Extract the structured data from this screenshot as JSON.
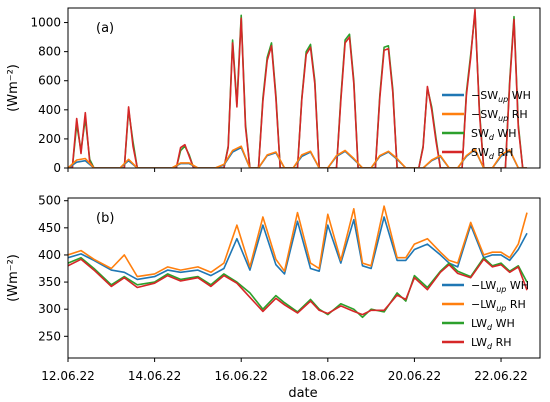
{
  "figure": {
    "xlabel": "date",
    "xticks": [
      "12.06.22",
      "14.06.22",
      "16.06.22",
      "18.06.22",
      "20.06.22",
      "22.06.22"
    ],
    "xticks_days": [
      12,
      14,
      16,
      18,
      20,
      22
    ],
    "xlim_days": [
      12.0,
      22.9
    ]
  },
  "chart_data": [
    {
      "type": "line",
      "panel_label": "(a)",
      "ylabel": "(Wm⁻²)",
      "ylim": [
        0,
        1100
      ],
      "yticks": [
        0,
        200,
        400,
        600,
        800,
        1000
      ],
      "x_unit": "day of June 2022",
      "legend": {
        "placement": "right"
      },
      "colors": {
        "up_wh": "#1f77b4",
        "up_rh": "#ff7f0e",
        "d_wh": "#2ca02c",
        "d_rh": "#d62728"
      },
      "series": [
        {
          "key": "sw_d_wh",
          "legend_prefix": "SW",
          "legend_sub": "d",
          "legend_suffix": " WH",
          "color": "#2ca02c",
          "x": [
            12.0,
            12.1,
            12.2,
            12.3,
            12.4,
            12.5,
            12.6,
            12.7,
            12.8,
            12.9,
            13.0,
            13.1,
            13.2,
            13.3,
            13.4,
            13.5,
            13.6,
            13.7,
            13.8,
            13.9,
            14.0,
            14.1,
            14.2,
            14.3,
            14.4,
            14.5,
            14.6,
            14.7,
            14.8,
            14.9,
            15.0,
            15.1,
            15.2,
            15.3,
            15.4,
            15.5,
            15.6,
            15.7,
            15.8,
            15.9,
            16.0,
            16.1,
            16.2,
            16.3,
            16.4,
            16.5,
            16.6,
            16.7,
            16.8,
            16.9,
            17.0,
            17.1,
            17.2,
            17.3,
            17.4,
            17.5,
            17.6,
            17.7,
            17.8,
            17.9,
            18.0,
            18.1,
            18.2,
            18.3,
            18.4,
            18.5,
            18.6,
            18.7,
            18.8,
            18.9,
            19.0,
            19.1,
            19.2,
            19.3,
            19.4,
            19.5,
            19.6,
            19.7,
            19.8,
            19.9,
            20.0,
            20.1,
            20.2,
            20.3,
            20.4,
            20.5,
            20.6,
            20.7,
            20.8,
            20.9,
            21.0,
            21.1,
            21.2,
            21.3,
            21.4,
            21.5,
            21.6,
            21.7,
            21.8,
            21.9,
            22.0,
            22.1,
            22.2,
            22.3,
            22.4,
            22.5,
            22.6
          ],
          "y": [
            0,
            0,
            300,
            120,
            340,
            60,
            0,
            0,
            0,
            0,
            0,
            0,
            0,
            0,
            400,
            180,
            0,
            0,
            0,
            0,
            0,
            0,
            0,
            0,
            0,
            0,
            120,
            150,
            90,
            0,
            0,
            0,
            0,
            0,
            0,
            0,
            0,
            150,
            880,
            440,
            1050,
            300,
            0,
            0,
            0,
            480,
            760,
            860,
            500,
            0,
            0,
            0,
            0,
            0,
            480,
            800,
            850,
            600,
            0,
            0,
            0,
            0,
            0,
            480,
            880,
            920,
            600,
            0,
            0,
            0,
            0,
            0,
            500,
            830,
            840,
            540,
            0,
            0,
            0,
            0,
            0,
            0,
            150,
            550,
            420,
            200,
            0,
            0,
            0,
            0,
            0,
            0,
            520,
            780,
            1070,
            400,
            0,
            0,
            0,
            0,
            0,
            0,
            600,
            1040,
            300,
            0,
            0
          ]
        },
        {
          "key": "sw_d_rh",
          "legend_prefix": "SW",
          "legend_sub": "d",
          "legend_suffix": " RH",
          "color": "#d62728",
          "x": [
            12.0,
            12.1,
            12.2,
            12.3,
            12.4,
            12.5,
            12.6,
            12.7,
            12.8,
            12.9,
            13.0,
            13.1,
            13.2,
            13.3,
            13.4,
            13.5,
            13.6,
            13.7,
            13.8,
            13.9,
            14.0,
            14.1,
            14.2,
            14.3,
            14.4,
            14.5,
            14.6,
            14.7,
            14.8,
            14.9,
            15.0,
            15.1,
            15.2,
            15.3,
            15.4,
            15.5,
            15.6,
            15.7,
            15.8,
            15.9,
            16.0,
            16.1,
            16.2,
            16.3,
            16.4,
            16.5,
            16.6,
            16.7,
            16.8,
            16.9,
            17.0,
            17.1,
            17.2,
            17.3,
            17.4,
            17.5,
            17.6,
            17.7,
            17.8,
            17.9,
            18.0,
            18.1,
            18.2,
            18.3,
            18.4,
            18.5,
            18.6,
            18.7,
            18.8,
            18.9,
            19.0,
            19.1,
            19.2,
            19.3,
            19.4,
            19.5,
            19.6,
            19.7,
            19.8,
            19.9,
            20.0,
            20.1,
            20.2,
            20.3,
            20.4,
            20.5,
            20.6,
            20.7,
            20.8,
            20.9,
            21.0,
            21.1,
            21.2,
            21.3,
            21.4,
            21.5,
            21.6,
            21.7,
            21.8,
            21.9,
            22.0,
            22.1,
            22.2,
            22.3,
            22.4,
            22.5,
            22.6
          ],
          "y": [
            0,
            0,
            340,
            100,
            380,
            40,
            0,
            0,
            0,
            0,
            0,
            0,
            0,
            0,
            420,
            150,
            0,
            0,
            0,
            0,
            0,
            0,
            0,
            0,
            0,
            0,
            140,
            160,
            80,
            0,
            0,
            0,
            0,
            0,
            0,
            0,
            0,
            140,
            860,
            420,
            1030,
            280,
            0,
            0,
            0,
            460,
            740,
            840,
            480,
            0,
            0,
            0,
            0,
            0,
            470,
            780,
            830,
            580,
            0,
            0,
            0,
            0,
            0,
            460,
            860,
            900,
            580,
            0,
            0,
            0,
            0,
            0,
            480,
            810,
            820,
            520,
            0,
            0,
            0,
            0,
            0,
            0,
            140,
            560,
            400,
            180,
            0,
            0,
            0,
            0,
            0,
            0,
            500,
            760,
            1090,
            380,
            0,
            0,
            0,
            0,
            0,
            0,
            580,
            1020,
            280,
            0,
            0
          ]
        },
        {
          "key": "sw_up_wh",
          "legend_prefix": "−SW",
          "legend_sub": "up",
          "legend_suffix": " WH",
          "color": "#1f77b4",
          "x": [
            12.0,
            12.2,
            12.4,
            12.6,
            12.8,
            13.0,
            13.2,
            13.4,
            13.6,
            13.8,
            14.0,
            14.2,
            14.4,
            14.6,
            14.8,
            15.0,
            15.2,
            15.4,
            15.6,
            15.8,
            16.0,
            16.2,
            16.4,
            16.6,
            16.8,
            17.0,
            17.2,
            17.4,
            17.6,
            17.8,
            18.0,
            18.2,
            18.4,
            18.6,
            18.8,
            19.0,
            19.2,
            19.4,
            19.6,
            19.8,
            20.0,
            20.2,
            20.4,
            20.6,
            20.8,
            21.0,
            21.2,
            21.4,
            21.6,
            21.8,
            22.0,
            22.2,
            22.4,
            22.6
          ],
          "y": [
            0,
            40,
            50,
            0,
            0,
            0,
            0,
            50,
            0,
            0,
            0,
            0,
            0,
            30,
            30,
            0,
            0,
            0,
            20,
            110,
            140,
            0,
            0,
            85,
            105,
            0,
            0,
            80,
            110,
            0,
            0,
            80,
            115,
            60,
            0,
            0,
            80,
            110,
            60,
            0,
            0,
            0,
            50,
            80,
            0,
            0,
            80,
            125,
            0,
            0,
            80,
            120,
            0,
            0
          ]
        },
        {
          "key": "sw_up_rh",
          "legend_prefix": "−SW",
          "legend_sub": "up",
          "legend_suffix": " RH",
          "color": "#ff7f0e",
          "x": [
            12.0,
            12.2,
            12.4,
            12.6,
            12.8,
            13.0,
            13.2,
            13.4,
            13.6,
            13.8,
            14.0,
            14.2,
            14.4,
            14.6,
            14.8,
            15.0,
            15.2,
            15.4,
            15.6,
            15.8,
            16.0,
            16.2,
            16.4,
            16.6,
            16.8,
            17.0,
            17.2,
            17.4,
            17.6,
            17.8,
            18.0,
            18.2,
            18.4,
            18.6,
            18.8,
            19.0,
            19.2,
            19.4,
            19.6,
            19.8,
            20.0,
            20.2,
            20.4,
            20.6,
            20.8,
            21.0,
            21.2,
            21.4,
            21.6,
            21.8,
            22.0,
            22.2,
            22.4,
            22.6
          ],
          "y": [
            0,
            55,
            65,
            0,
            0,
            0,
            0,
            60,
            0,
            0,
            0,
            0,
            0,
            35,
            35,
            0,
            0,
            0,
            25,
            120,
            150,
            0,
            0,
            90,
            110,
            0,
            0,
            90,
            115,
            0,
            0,
            85,
            120,
            65,
            0,
            0,
            85,
            115,
            65,
            0,
            0,
            0,
            55,
            85,
            0,
            0,
            85,
            130,
            0,
            0,
            90,
            125,
            0,
            0
          ]
        }
      ]
    },
    {
      "type": "line",
      "panel_label": "(b)",
      "ylabel": "(Wm⁻²)",
      "ylim": [
        210,
        505
      ],
      "yticks": [
        250,
        300,
        350,
        400,
        450,
        500
      ],
      "x_unit": "day of June 2022",
      "legend": {
        "placement": "right"
      },
      "series": [
        {
          "key": "lw_up_wh",
          "legend_prefix": "−LW",
          "legend_sub": "up",
          "legend_suffix": " WH",
          "color": "#1f77b4",
          "x": [
            12.0,
            12.3,
            12.6,
            13.0,
            13.3,
            13.6,
            14.0,
            14.3,
            14.6,
            15.0,
            15.3,
            15.6,
            15.9,
            16.2,
            16.5,
            16.8,
            17.0,
            17.3,
            17.6,
            17.8,
            18.0,
            18.3,
            18.6,
            18.8,
            19.0,
            19.3,
            19.6,
            19.8,
            20.0,
            20.3,
            20.6,
            20.8,
            21.0,
            21.3,
            21.6,
            21.8,
            22.0,
            22.2,
            22.4,
            22.6
          ],
          "y": [
            395,
            402,
            390,
            372,
            368,
            355,
            360,
            372,
            368,
            372,
            362,
            375,
            430,
            372,
            455,
            382,
            365,
            462,
            375,
            370,
            455,
            385,
            465,
            380,
            375,
            470,
            390,
            390,
            410,
            420,
            400,
            385,
            378,
            455,
            395,
            400,
            400,
            390,
            410,
            440
          ]
        },
        {
          "key": "lw_up_rh",
          "legend_prefix": "−LW",
          "legend_sub": "up",
          "legend_suffix": " RH",
          "color": "#ff7f0e",
          "x": [
            12.0,
            12.3,
            12.6,
            13.0,
            13.3,
            13.6,
            14.0,
            14.3,
            14.6,
            15.0,
            15.3,
            15.6,
            15.9,
            16.2,
            16.5,
            16.8,
            17.0,
            17.3,
            17.6,
            17.8,
            18.0,
            18.3,
            18.6,
            18.8,
            19.0,
            19.3,
            19.6,
            19.8,
            20.0,
            20.3,
            20.6,
            20.8,
            21.0,
            21.3,
            21.6,
            21.8,
            22.0,
            22.2,
            22.4,
            22.6
          ],
          "y": [
            400,
            408,
            392,
            375,
            400,
            360,
            365,
            378,
            372,
            378,
            368,
            385,
            455,
            378,
            470,
            392,
            370,
            478,
            385,
            375,
            475,
            390,
            485,
            385,
            380,
            490,
            395,
            395,
            420,
            430,
            405,
            390,
            385,
            460,
            400,
            405,
            405,
            395,
            420,
            478
          ]
        },
        {
          "key": "lw_d_wh",
          "legend_prefix": "LW",
          "legend_sub": "d",
          "legend_suffix": " WH",
          "color": "#2ca02c",
          "x": [
            12.0,
            12.3,
            12.6,
            13.0,
            13.3,
            13.6,
            14.0,
            14.3,
            14.6,
            15.0,
            15.3,
            15.6,
            15.9,
            16.2,
            16.5,
            16.8,
            17.0,
            17.3,
            17.6,
            17.8,
            18.0,
            18.3,
            18.6,
            18.8,
            19.0,
            19.3,
            19.6,
            19.8,
            20.0,
            20.3,
            20.6,
            20.8,
            21.0,
            21.3,
            21.6,
            21.8,
            22.0,
            22.2,
            22.4,
            22.6
          ],
          "y": [
            385,
            395,
            375,
            345,
            360,
            345,
            350,
            365,
            355,
            360,
            345,
            365,
            350,
            330,
            300,
            325,
            312,
            295,
            318,
            300,
            290,
            310,
            300,
            285,
            300,
            295,
            330,
            315,
            362,
            340,
            370,
            385,
            370,
            360,
            395,
            380,
            385,
            370,
            380,
            350
          ]
        },
        {
          "key": "lw_d_rh",
          "legend_prefix": "LW",
          "legend_sub": "d",
          "legend_suffix": " RH",
          "color": "#d62728",
          "x": [
            12.0,
            12.3,
            12.6,
            13.0,
            13.3,
            13.6,
            14.0,
            14.3,
            14.6,
            15.0,
            15.3,
            15.6,
            15.9,
            16.2,
            16.5,
            16.8,
            17.0,
            17.3,
            17.6,
            17.8,
            18.0,
            18.3,
            18.6,
            18.8,
            19.0,
            19.3,
            19.6,
            19.8,
            20.0,
            20.3,
            20.6,
            20.8,
            21.0,
            21.3,
            21.6,
            21.8,
            22.0,
            22.2,
            22.4,
            22.6
          ],
          "y": [
            380,
            392,
            372,
            342,
            358,
            340,
            348,
            362,
            352,
            358,
            342,
            362,
            348,
            322,
            296,
            320,
            308,
            293,
            315,
            298,
            292,
            306,
            296,
            290,
            298,
            298,
            326,
            318,
            358,
            336,
            368,
            382,
            366,
            358,
            392,
            378,
            382,
            368,
            378,
            335
          ]
        }
      ]
    }
  ]
}
